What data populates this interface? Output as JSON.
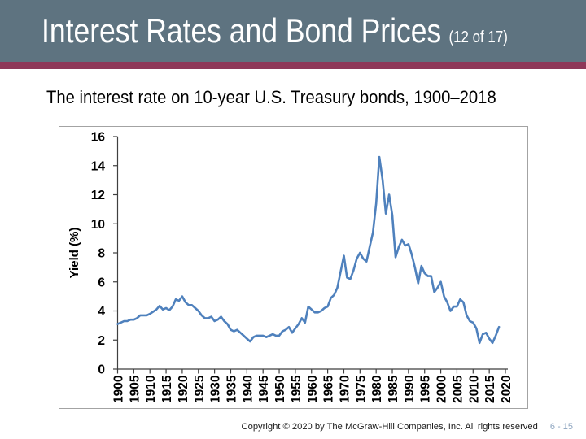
{
  "slide": {
    "title": "Interest Rates and Bond Prices",
    "title_suffix": "(12 of 17)",
    "subtitle": "The interest rate on 10-year U.S. Treasury bonds, 1900–2018",
    "footer": {
      "copyright": "Copyright © 2020 by The McGraw-Hill Companies, Inc. All rights reserved",
      "page_number": "6 - 15"
    }
  },
  "colors": {
    "header_bg": "#5e7380",
    "accent_stripe": "#8e3758",
    "line": "#4f81bd",
    "page_number": "#8ba3be",
    "axis": "#3f3f3f",
    "chart_border": "#a3a3a3"
  },
  "chart_data": {
    "type": "line",
    "title": "",
    "xlabel": "",
    "ylabel": "Yield (%)",
    "xlim": [
      1900,
      2020
    ],
    "ylim": [
      0,
      16
    ],
    "grid": false,
    "legend": false,
    "x_ticks": [
      1900,
      1905,
      1910,
      1915,
      1920,
      1925,
      1930,
      1935,
      1940,
      1945,
      1950,
      1955,
      1960,
      1965,
      1970,
      1975,
      1980,
      1985,
      1990,
      1995,
      2000,
      2005,
      2010,
      2015,
      2020
    ],
    "y_ticks": [
      0,
      2,
      4,
      6,
      8,
      10,
      12,
      14,
      16
    ],
    "series": [
      {
        "name": "10-year U.S. Treasury bond yield (%)",
        "x": [
          1900,
          1901,
          1902,
          1903,
          1904,
          1905,
          1906,
          1907,
          1908,
          1909,
          1910,
          1911,
          1912,
          1913,
          1914,
          1915,
          1916,
          1917,
          1918,
          1919,
          1920,
          1921,
          1922,
          1923,
          1924,
          1925,
          1926,
          1927,
          1928,
          1929,
          1930,
          1931,
          1932,
          1933,
          1934,
          1935,
          1936,
          1937,
          1938,
          1939,
          1940,
          1941,
          1942,
          1943,
          1944,
          1945,
          1946,
          1947,
          1948,
          1949,
          1950,
          1951,
          1952,
          1953,
          1954,
          1955,
          1956,
          1957,
          1958,
          1959,
          1960,
          1961,
          1962,
          1963,
          1964,
          1965,
          1966,
          1967,
          1968,
          1969,
          1970,
          1971,
          1972,
          1973,
          1974,
          1975,
          1976,
          1977,
          1978,
          1979,
          1980,
          1981,
          1982,
          1983,
          1984,
          1985,
          1986,
          1987,
          1988,
          1989,
          1990,
          1991,
          1992,
          1993,
          1994,
          1995,
          1996,
          1997,
          1998,
          1999,
          2000,
          2001,
          2002,
          2003,
          2004,
          2005,
          2006,
          2007,
          2008,
          2009,
          2010,
          2011,
          2012,
          2013,
          2014,
          2015,
          2016,
          2017,
          2018
        ],
        "values": [
          3.1,
          3.2,
          3.3,
          3.3,
          3.4,
          3.4,
          3.5,
          3.7,
          3.7,
          3.7,
          3.8,
          3.95,
          4.1,
          4.35,
          4.1,
          4.2,
          4.05,
          4.3,
          4.8,
          4.7,
          5.0,
          4.6,
          4.4,
          4.4,
          4.2,
          4.0,
          3.7,
          3.5,
          3.5,
          3.6,
          3.3,
          3.4,
          3.6,
          3.3,
          3.1,
          2.7,
          2.6,
          2.7,
          2.5,
          2.3,
          2.1,
          1.9,
          2.2,
          2.3,
          2.3,
          2.3,
          2.2,
          2.3,
          2.4,
          2.3,
          2.3,
          2.6,
          2.7,
          2.9,
          2.5,
          2.8,
          3.1,
          3.5,
          3.2,
          4.3,
          4.1,
          3.9,
          3.9,
          4.0,
          4.2,
          4.3,
          4.9,
          5.1,
          5.6,
          6.7,
          7.8,
          6.3,
          6.2,
          6.8,
          7.6,
          8.0,
          7.6,
          7.4,
          8.4,
          9.4,
          11.4,
          14.6,
          13.0,
          10.7,
          12.0,
          10.6,
          7.7,
          8.4,
          8.9,
          8.5,
          8.6,
          7.9,
          7.0,
          5.9,
          7.1,
          6.6,
          6.4,
          6.4,
          5.3,
          5.6,
          6.0,
          5.0,
          4.6,
          4.0,
          4.3,
          4.3,
          4.8,
          4.6,
          3.7,
          3.3,
          3.2,
          2.8,
          1.8,
          2.4,
          2.5,
          2.1,
          1.8,
          2.3,
          2.9
        ]
      }
    ]
  }
}
